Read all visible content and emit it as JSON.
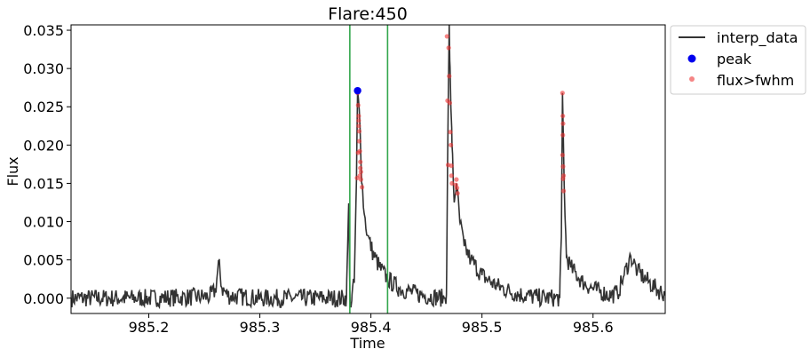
{
  "chart_data": {
    "type": "line",
    "title": "Flare:450",
    "xlabel": "Time",
    "ylabel": "Flux",
    "xlim": [
      985.13,
      985.665
    ],
    "ylim": [
      -0.002,
      0.0357
    ],
    "xticks": [
      985.2,
      985.3,
      985.4,
      985.5,
      985.6
    ],
    "xtick_labels": [
      "985.2",
      "985.3",
      "985.4",
      "985.5",
      "985.6"
    ],
    "yticks": [
      0.0,
      0.005,
      0.01,
      0.015,
      0.02,
      0.025,
      0.03,
      0.035
    ],
    "ytick_labels": [
      "0.000",
      "0.005",
      "0.010",
      "0.015",
      "0.020",
      "0.025",
      "0.030",
      "0.035"
    ],
    "grid": false,
    "legend": {
      "placement": "outside-top-right",
      "entries": [
        {
          "label": "interp_data",
          "marker": "line",
          "color": "#333333"
        },
        {
          "label": "peak",
          "marker": "dot",
          "color": "#0000ee"
        },
        {
          "label": "flux>fwhm",
          "marker": "dot",
          "color": "#ee3333"
        }
      ]
    },
    "vertical_lines": {
      "color": "#33a64d",
      "x": [
        985.381,
        985.415
      ]
    },
    "series": [
      {
        "name": "interp_data",
        "color": "#333333",
        "anchors": [
          [
            985.13,
            0.0
          ],
          [
            985.2,
            0.0
          ],
          [
            985.255,
            0.0002
          ],
          [
            985.26,
            0.001
          ],
          [
            985.263,
            0.0046
          ],
          [
            985.266,
            0.0012
          ],
          [
            985.272,
            0.0003
          ],
          [
            985.3,
            0.0
          ],
          [
            985.375,
            0.0
          ],
          [
            985.378,
            0.0001
          ],
          [
            985.379,
            0.0065
          ],
          [
            985.38,
            0.0124
          ],
          [
            985.381,
            0.001
          ],
          [
            985.382,
            -0.0012
          ],
          [
            985.383,
            0.0005
          ],
          [
            985.385,
            0.002
          ],
          [
            985.387,
            0.0155
          ],
          [
            985.388,
            0.0271
          ],
          [
            985.39,
            0.023
          ],
          [
            985.392,
            0.015
          ],
          [
            985.394,
            0.011
          ],
          [
            985.397,
            0.0082
          ],
          [
            985.402,
            0.0058
          ],
          [
            985.408,
            0.004
          ],
          [
            985.415,
            0.0025
          ],
          [
            985.425,
            0.0013
          ],
          [
            985.445,
            0.0004
          ],
          [
            985.466,
            0.0
          ],
          [
            985.468,
            0.0005
          ],
          [
            985.469,
            0.0172
          ],
          [
            985.4705,
            0.0357
          ],
          [
            985.471,
            0.031
          ],
          [
            985.473,
            0.02
          ],
          [
            985.475,
            0.0125
          ],
          [
            985.477,
            0.015
          ],
          [
            985.48,
            0.01
          ],
          [
            985.484,
            0.0068
          ],
          [
            985.49,
            0.005
          ],
          [
            985.5,
            0.003
          ],
          [
            985.512,
            0.0017
          ],
          [
            985.53,
            0.0006
          ],
          [
            985.55,
            0.0001
          ],
          [
            985.57,
            0.0
          ],
          [
            985.5715,
            0.008
          ],
          [
            985.5725,
            0.0268
          ],
          [
            985.574,
            0.015
          ],
          [
            985.576,
            0.0055
          ],
          [
            985.58,
            0.004
          ],
          [
            985.59,
            0.0022
          ],
          [
            985.6,
            0.0012
          ],
          [
            985.615,
            0.0004
          ],
          [
            985.622,
            0.0006
          ],
          [
            985.628,
            0.003
          ],
          [
            985.634,
            0.0055
          ],
          [
            985.64,
            0.0035
          ],
          [
            985.648,
            0.0024
          ],
          [
            985.657,
            0.0012
          ],
          [
            985.665,
            0.0005
          ]
        ],
        "noise_amplitude": 0.0012
      },
      {
        "name": "peak",
        "color": "#0000ee",
        "points": [
          [
            985.388,
            0.0271
          ]
        ]
      },
      {
        "name": "flux>fwhm",
        "color": "#ee3333",
        "points": [
          [
            985.3875,
            0.0157
          ],
          [
            985.388,
            0.0268
          ],
          [
            985.3885,
            0.0252
          ],
          [
            985.389,
            0.0238
          ],
          [
            985.389,
            0.0225
          ],
          [
            985.3895,
            0.0205
          ],
          [
            985.39,
            0.0192
          ],
          [
            985.3905,
            0.0178
          ],
          [
            985.391,
            0.0165
          ],
          [
            985.391,
            0.0155
          ],
          [
            985.392,
            0.0145
          ],
          [
            985.389,
            0.0232
          ],
          [
            985.3895,
            0.0218
          ],
          [
            985.3905,
            0.017
          ],
          [
            985.3885,
            0.019
          ],
          [
            985.39,
            0.016
          ],
          [
            985.4685,
            0.0342
          ],
          [
            985.469,
            0.0258
          ],
          [
            985.4695,
            0.0174
          ],
          [
            985.47,
            0.0327
          ],
          [
            985.4705,
            0.029
          ],
          [
            985.471,
            0.0255
          ],
          [
            985.4715,
            0.0217
          ],
          [
            985.472,
            0.02
          ],
          [
            985.4725,
            0.0173
          ],
          [
            985.473,
            0.015
          ],
          [
            985.477,
            0.0155
          ],
          [
            985.4775,
            0.0144
          ],
          [
            985.478,
            0.0137
          ],
          [
            985.4765,
            0.0148
          ],
          [
            985.4725,
            0.016
          ],
          [
            985.5725,
            0.0268
          ],
          [
            985.5728,
            0.0238
          ],
          [
            985.573,
            0.0228
          ],
          [
            985.5728,
            0.0213
          ],
          [
            985.5725,
            0.0187
          ],
          [
            985.573,
            0.0172
          ],
          [
            985.5735,
            0.016
          ],
          [
            985.5735,
            0.014
          ],
          [
            985.573,
            0.0156
          ]
        ]
      }
    ]
  }
}
